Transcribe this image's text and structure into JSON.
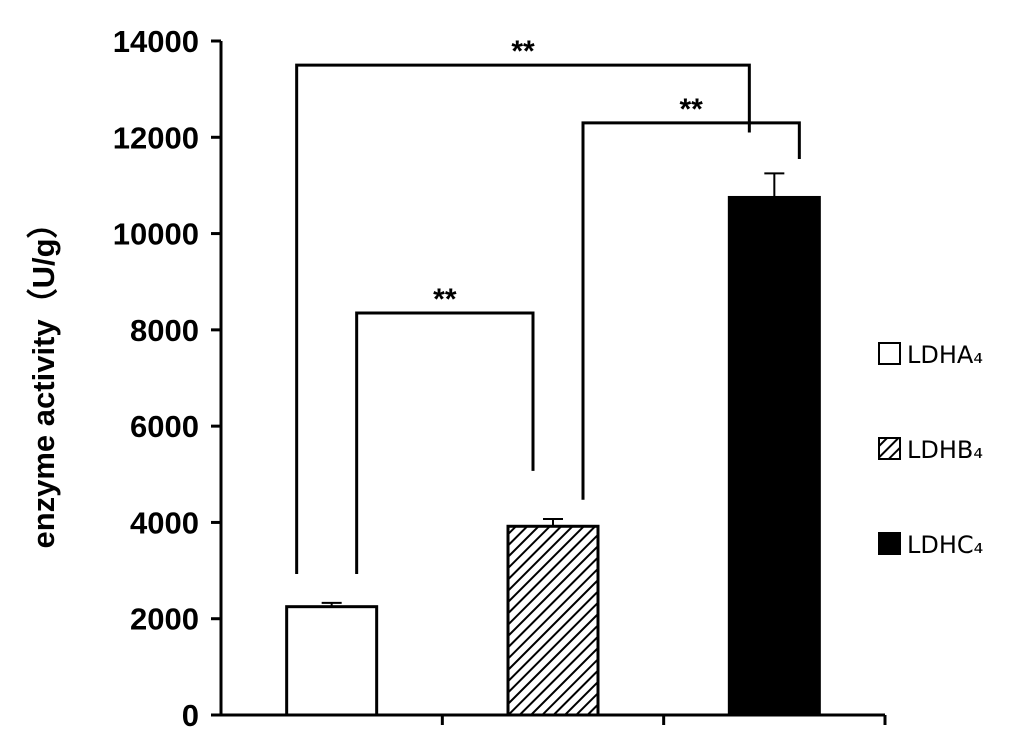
{
  "chart_data": {
    "type": "bar",
    "title": "",
    "xlabel": "",
    "ylabel": "enzyme activity（U/g）",
    "ylim": [
      0,
      14000
    ],
    "yticks": [
      0,
      2000,
      4000,
      6000,
      8000,
      10000,
      12000,
      14000
    ],
    "grid": false,
    "legend_position": "right",
    "categories": [
      "LDHA₄",
      "LDHB₄",
      "LDHC₄"
    ],
    "values": [
      2250,
      3920,
      10750
    ],
    "errors": [
      80,
      150,
      500
    ],
    "fills": [
      "white",
      "hatched",
      "black"
    ],
    "significance": [
      {
        "from": 0,
        "to": 2,
        "label": "**",
        "y": 13500
      },
      {
        "from": 1,
        "to": 2,
        "label": "**",
        "y": 12300
      },
      {
        "from": 0,
        "to": 1,
        "label": "**",
        "y": 8350
      }
    ]
  }
}
